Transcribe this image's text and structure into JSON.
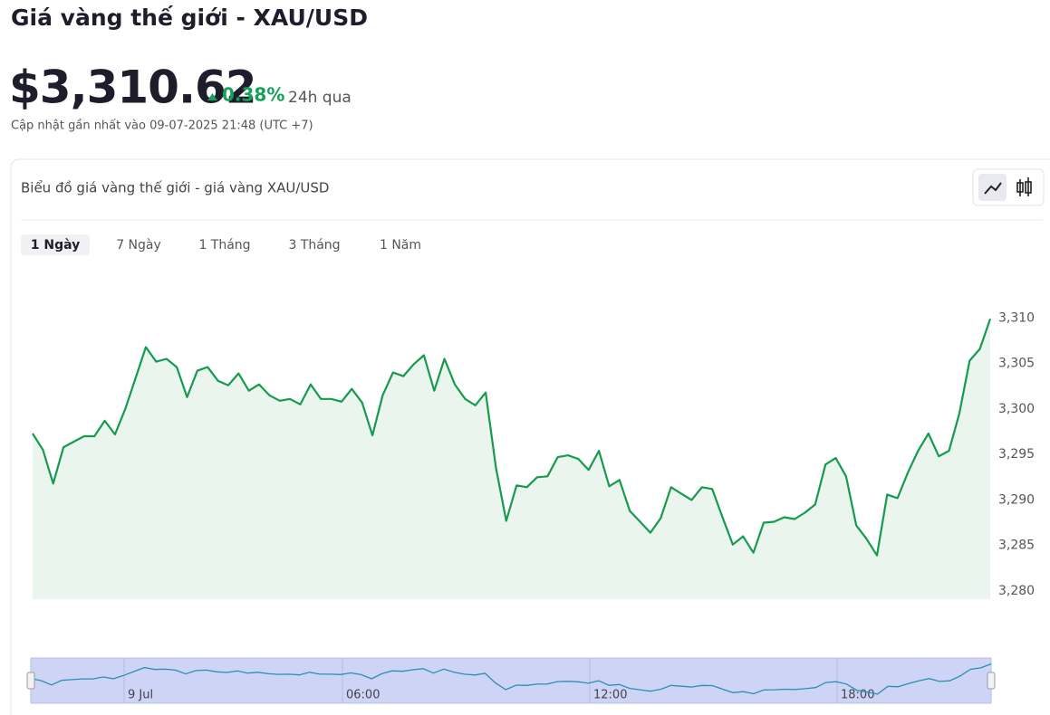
{
  "header": {
    "title": "Giá vàng thế giới - XAU/USD",
    "price": "$3,310.62",
    "change": "0.38%",
    "period": "24h qua",
    "updated": "Cập nhật gần nhất vào 09-07-2025 21:48 (UTC +7)"
  },
  "card": {
    "title": "Biểu đồ giá vàng thế giới - giá vàng XAU/USD",
    "tabs": [
      "1 Ngày",
      "7 Ngày",
      "1 Tháng",
      "3 Tháng",
      "1 Năm"
    ],
    "active_tab": 0
  },
  "chart_data": {
    "type": "line",
    "color": "#169a4e",
    "values": [
      3297.3,
      3295.5,
      3291.8,
      3295.8,
      3296.4,
      3297.0,
      3297.0,
      3298.7,
      3297.2,
      3300.0,
      3303.4,
      3306.8,
      3305.2,
      3305.5,
      3304.6,
      3301.3,
      3304.2,
      3304.6,
      3303.1,
      3302.6,
      3303.9,
      3302.0,
      3302.7,
      3301.5,
      3300.9,
      3301.1,
      3300.5,
      3302.7,
      3301.1,
      3301.1,
      3300.8,
      3302.2,
      3300.7,
      3297.1,
      3301.5,
      3304.0,
      3303.6,
      3304.9,
      3305.9,
      3302.0,
      3305.5,
      3302.7,
      3301.1,
      3300.4,
      3301.8,
      3293.5,
      3287.7,
      3291.6,
      3291.4,
      3292.5,
      3292.6,
      3294.7,
      3294.9,
      3294.5,
      3293.3,
      3295.4,
      3291.5,
      3292.2,
      3288.8,
      3287.6,
      3286.4,
      3288.0,
      3291.4,
      3290.7,
      3290.0,
      3291.4,
      3291.2,
      3288.1,
      3285.1,
      3286.0,
      3284.2,
      3287.5,
      3287.6,
      3288.1,
      3287.9,
      3288.6,
      3289.5,
      3293.9,
      3294.6,
      3292.6,
      3287.2,
      3285.7,
      3283.9,
      3290.6,
      3290.2,
      3293.0,
      3295.4,
      3297.3,
      3294.8,
      3295.4,
      3299.5,
      3305.3,
      3306.6,
      3309.9
    ],
    "ylim": [
      3279.1,
      3315.1
    ],
    "yticks": [
      {
        "value": 3280,
        "label": "3,280"
      },
      {
        "value": 3285,
        "label": "3,285"
      },
      {
        "value": 3290,
        "label": "3,290"
      },
      {
        "value": 3295,
        "label": "3,295"
      },
      {
        "value": 3300,
        "label": "3,300"
      },
      {
        "value": 3305,
        "label": "3,305"
      },
      {
        "value": 3310,
        "label": "3,310"
      }
    ],
    "navigator_labels": [
      "9 Jul",
      "06:00",
      "12:00",
      "18:00"
    ]
  }
}
